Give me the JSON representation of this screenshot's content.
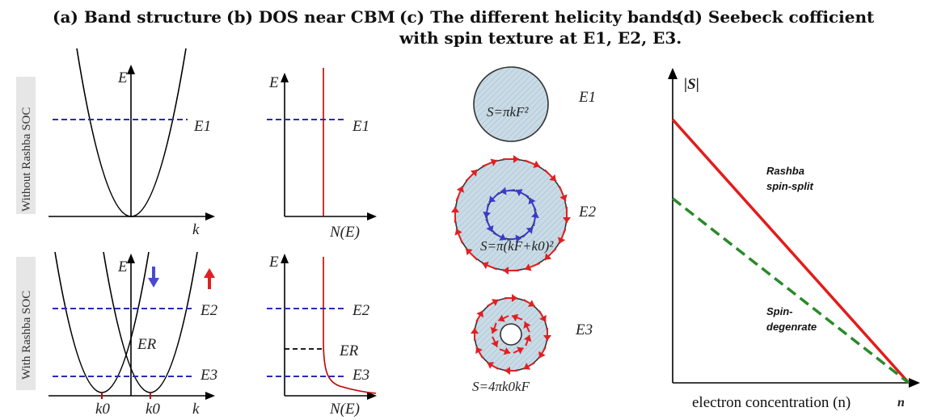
{
  "titles": {
    "a": "(a) Band structure",
    "b": "(b) DOS near CBM",
    "c_line1": "(c) The different helicity bands",
    "c_line2": "with spin texture at E1, E2, E3.",
    "d": "(d) Seebeck cofficient"
  },
  "row_labels": {
    "top": "Without Rashba SOC",
    "bottom": "With Rashba SOC"
  },
  "axis_labels": {
    "energy": "E",
    "momentum": "k",
    "dos": "N(E)",
    "seebeck_y": "|S|",
    "seebeck_x": "n",
    "seebeck_xcaption": "electron concentration (n)"
  },
  "levels": {
    "e1": "E1",
    "e2": "E2",
    "e3": "E3",
    "er": "ER"
  },
  "k0_label": "k0",
  "fermi_areas": {
    "e1": "S=πkF²",
    "e2": "S=π(kF+k0)²",
    "e3": "S=4πk0kF"
  },
  "seebeck_legend": {
    "rashba_line1": "Rashba",
    "rashba_line2": "spin-split",
    "degenerate_line1": "Spin-",
    "degenerate_line2": "degenrate"
  },
  "colors": {
    "rashba": "#e31b1b",
    "degenerate": "#2a8a2a",
    "spin_outer": "#e02020",
    "spin_inner": "#3a3ac8",
    "level_lines": "#2a2ab8"
  },
  "chart_data": {
    "type": "line",
    "title": "(d) Seebeck cofficient",
    "xlabel": "electron concentration (n)",
    "ylabel": "|S|",
    "series": [
      {
        "name": "Rashba spin-split",
        "x": [
          0,
          1
        ],
        "y": [
          1.0,
          0.0
        ]
      },
      {
        "name": "Spin-degenrate",
        "x": [
          0,
          1
        ],
        "y": [
          0.7,
          0.0
        ]
      }
    ]
  }
}
